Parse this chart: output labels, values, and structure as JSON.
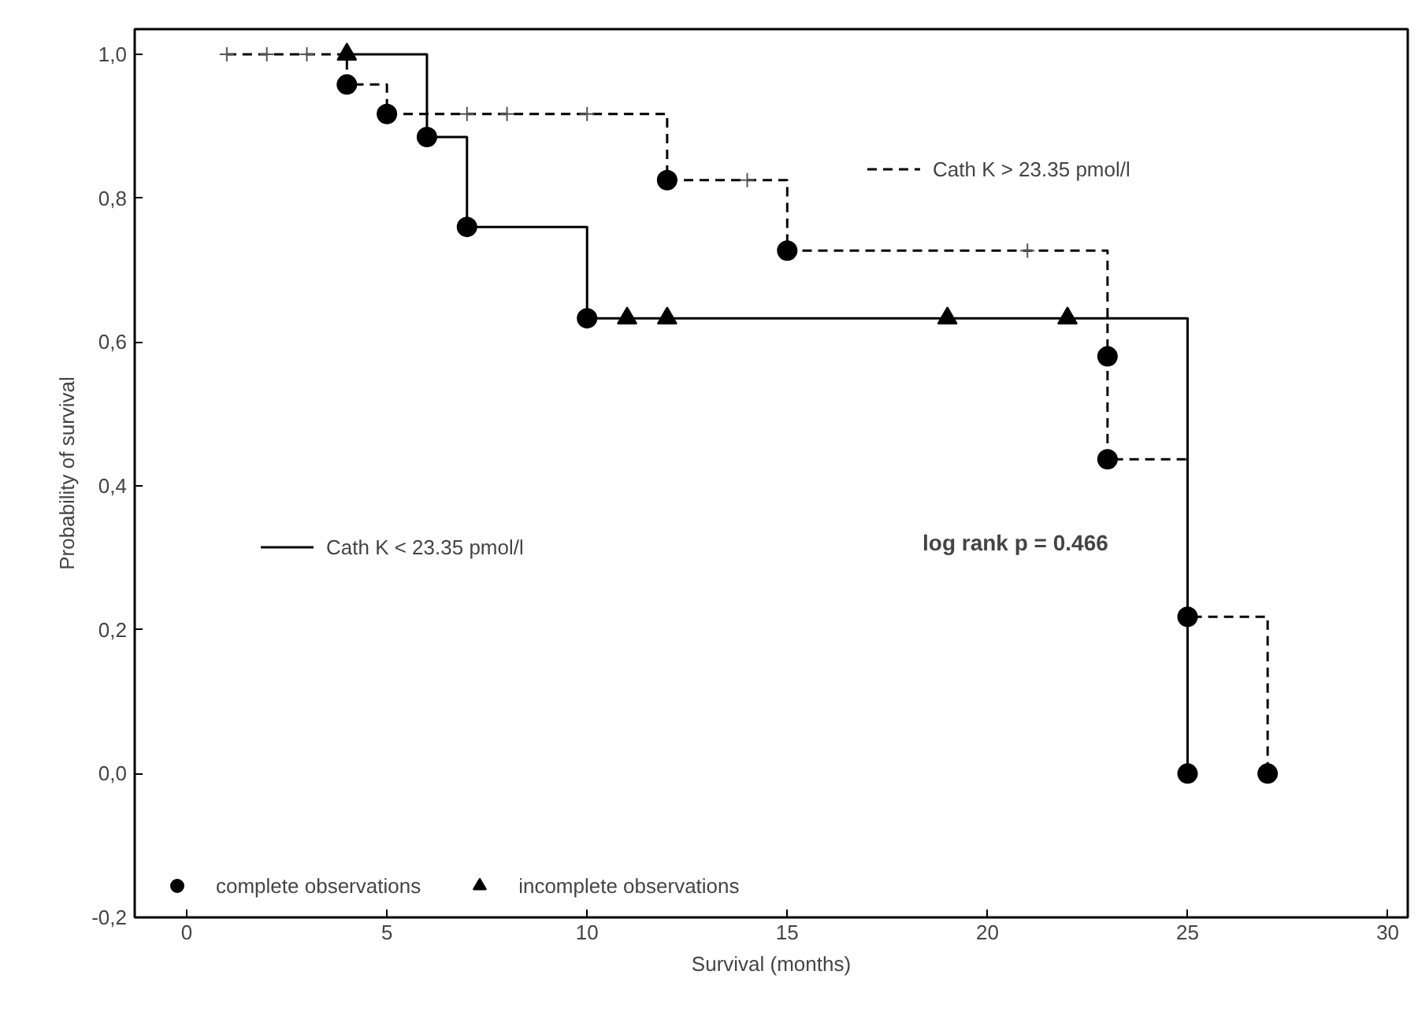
{
  "chart_data": {
    "type": "step",
    "xlabel": "Survival (months)",
    "ylabel": "Probability of survival",
    "xlim": [
      -1.3,
      30.5
    ],
    "ylim": [
      -0.2,
      1.035
    ],
    "xticks": [
      0,
      5,
      10,
      15,
      20,
      25,
      30
    ],
    "yticks": [
      {
        "value": -0.2,
        "label": "-0,2"
      },
      {
        "value": 0.0,
        "label": "0,0"
      },
      {
        "value": 0.2,
        "label": "0,2"
      },
      {
        "value": 0.4,
        "label": "0,4"
      },
      {
        "value": 0.6,
        "label": "0,6"
      },
      {
        "value": 0.8,
        "label": "0,8"
      },
      {
        "value": 1.0,
        "label": "1,0"
      }
    ],
    "grid": false,
    "legend": "bottom left",
    "annotations": [
      "log rank p = 0.466"
    ],
    "series": [
      {
        "name": "Cath K < 23.35 pmol/l",
        "color": "#000000",
        "line_style": "solid",
        "x": [
          4,
          6,
          7,
          10,
          25
        ],
        "values": [
          1.0,
          0.885,
          0.76,
          0.633,
          0.0
        ]
      },
      {
        "name": "Cath K > 23.35 pmol/l",
        "color": "#000000",
        "line_style": "dashed",
        "x": [
          1,
          4,
          5,
          12,
          15,
          23,
          23,
          25,
          27
        ],
        "values": [
          1.0,
          0.958,
          0.917,
          0.825,
          0.727,
          0.58,
          0.437,
          0.218,
          0.0
        ]
      },
      {
        "name": "complete observations",
        "type": "scatter",
        "marker": "circle",
        "color": "#000000",
        "x": [
          6,
          7,
          10,
          25,
          4,
          5,
          12,
          15,
          23,
          23,
          25,
          27
        ],
        "values": [
          0.885,
          0.76,
          0.633,
          0.0,
          0.958,
          0.917,
          0.825,
          0.727,
          0.58,
          0.437,
          0.218,
          0.0
        ]
      },
      {
        "name": "incomplete observations",
        "type": "scatter",
        "marker": "triangle",
        "color": "#000000",
        "x": [
          4,
          11,
          12,
          19,
          22
        ],
        "values": [
          1.0,
          0.633,
          0.633,
          0.633,
          0.633
        ]
      },
      {
        "type": "scatter",
        "marker": "cross",
        "color": "#555555",
        "x": [
          1,
          2,
          3,
          7,
          8,
          10,
          14,
          21
        ],
        "values": [
          1.0,
          1.0,
          1.0,
          0.917,
          0.917,
          0.917,
          0.825,
          0.727
        ]
      }
    ]
  }
}
